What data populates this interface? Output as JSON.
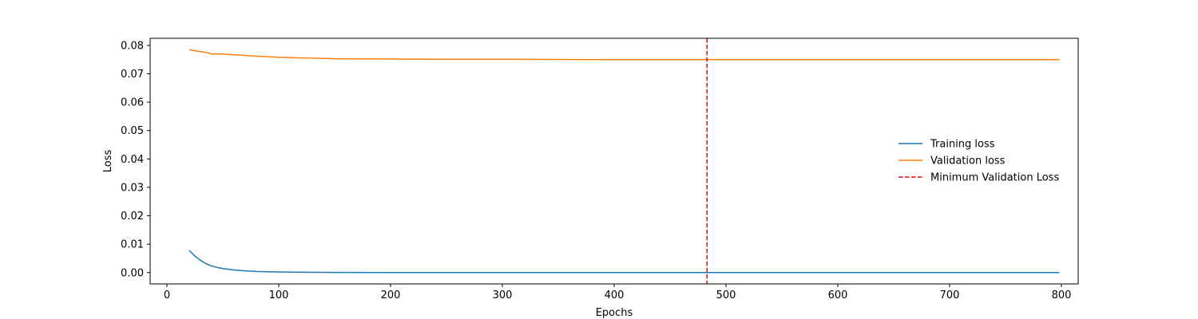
{
  "chart_data": {
    "type": "line",
    "title": "",
    "xlabel": "Epochs",
    "ylabel": "Loss",
    "xlim": [
      -15,
      815
    ],
    "ylim": [
      -0.004,
      0.0825
    ],
    "xticks": [
      0,
      100,
      200,
      300,
      400,
      500,
      600,
      700,
      800
    ],
    "xtick_labels": [
      "0",
      "100",
      "200",
      "300",
      "400",
      "500",
      "600",
      "700",
      "800"
    ],
    "yticks": [
      0.0,
      0.01,
      0.02,
      0.03,
      0.04,
      0.05,
      0.06,
      0.07,
      0.08
    ],
    "ytick_labels": [
      "0.00",
      "0.01",
      "0.02",
      "0.03",
      "0.04",
      "0.05",
      "0.06",
      "0.07",
      "0.08"
    ],
    "grid": false,
    "legend_position": "center-right",
    "series": [
      {
        "name": "Training loss",
        "color": "#1f77b4",
        "style": "solid",
        "x": [
          20,
          25,
          30,
          35,
          40,
          45,
          50,
          60,
          70,
          80,
          90,
          100,
          120,
          150,
          200,
          300,
          400,
          500,
          600,
          700,
          798
        ],
        "y": [
          0.0078,
          0.0058,
          0.0043,
          0.0031,
          0.0023,
          0.0018,
          0.0014,
          0.0009,
          0.0006,
          0.0004,
          0.0003,
          0.0002,
          0.0001,
          5e-05,
          2e-05,
          1e-05,
          0.0,
          0.0,
          0.0,
          0.0,
          0.0
        ]
      },
      {
        "name": "Validation loss",
        "color": "#ff7f0e",
        "style": "solid",
        "x": [
          20,
          25,
          30,
          35,
          38,
          40,
          42,
          45,
          50,
          55,
          60,
          70,
          75,
          80,
          100,
          120,
          150,
          200,
          250,
          300,
          400,
          500,
          600,
          700,
          798
        ],
        "y": [
          0.0785,
          0.0781,
          0.0778,
          0.0775,
          0.0772,
          0.0769,
          0.077,
          0.077,
          0.077,
          0.0768,
          0.0767,
          0.0765,
          0.0763,
          0.0762,
          0.0758,
          0.0756,
          0.0753,
          0.0752,
          0.0751,
          0.0751,
          0.075,
          0.075,
          0.075,
          0.075,
          0.075
        ]
      }
    ],
    "vlines": [
      {
        "name": "Minimum Validation Loss",
        "x": 483,
        "color": "#ff0000",
        "style": "dashed"
      }
    ]
  }
}
